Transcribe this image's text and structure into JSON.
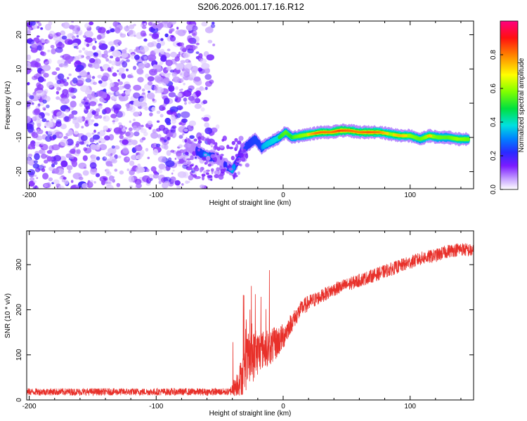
{
  "title": "S206.2026.001.17.16.R12",
  "chart_data": [
    {
      "type": "heatmap",
      "title": "S206.2026.001.17.16.R12",
      "xlabel": "Height of straight line (km)",
      "ylabel": "Frequency (Hz)",
      "xlim": [
        -202,
        150
      ],
      "ylim": [
        -25,
        24
      ],
      "x_ticks": [
        -200,
        -100,
        0,
        100
      ],
      "y_ticks": [
        -20,
        -10,
        0,
        10,
        20
      ],
      "colorbar": {
        "label": "Normalized spectral amplitude",
        "range": [
          0.0,
          1.0
        ],
        "ticks": [
          0.0,
          0.2,
          0.4,
          0.6,
          0.8
        ],
        "tick_labels": [
          "0.0",
          "0.2",
          "0.4",
          "0.6",
          "0.8"
        ]
      },
      "noise_region_x": [
        -202,
        -50
      ],
      "ridge": [
        {
          "x": -76,
          "f": -12,
          "a": 0.15
        },
        {
          "x": -68,
          "f": -14,
          "a": 0.2
        },
        {
          "x": -60,
          "f": -15.5,
          "a": 0.35
        },
        {
          "x": -52,
          "f": -16,
          "a": 0.15
        },
        {
          "x": -46,
          "f": -18,
          "a": 0.2
        },
        {
          "x": -40,
          "f": -19.5,
          "a": 0.35
        },
        {
          "x": -36,
          "f": -17,
          "a": 0.25
        },
        {
          "x": -33,
          "f": -14,
          "a": 0.3
        },
        {
          "x": -30,
          "f": -13,
          "a": 0.3
        },
        {
          "x": -27,
          "f": -12,
          "a": 0.25
        },
        {
          "x": -22,
          "f": -10.5,
          "a": 0.3
        },
        {
          "x": -17,
          "f": -13,
          "a": 0.3
        },
        {
          "x": -13,
          "f": -12,
          "a": 0.4
        },
        {
          "x": -8,
          "f": -11,
          "a": 0.45
        },
        {
          "x": -3,
          "f": -10,
          "a": 0.5
        },
        {
          "x": 2,
          "f": -8.5,
          "a": 0.55
        },
        {
          "x": 7,
          "f": -10,
          "a": 0.5
        },
        {
          "x": 14,
          "f": -9.5,
          "a": 0.65
        },
        {
          "x": 22,
          "f": -9,
          "a": 0.75
        },
        {
          "x": 30,
          "f": -8.5,
          "a": 0.85
        },
        {
          "x": 38,
          "f": -8.5,
          "a": 0.8
        },
        {
          "x": 45,
          "f": -8,
          "a": 0.95
        },
        {
          "x": 52,
          "f": -8,
          "a": 0.85
        },
        {
          "x": 60,
          "f": -8.5,
          "a": 0.8
        },
        {
          "x": 68,
          "f": -8.5,
          "a": 0.9
        },
        {
          "x": 76,
          "f": -8.5,
          "a": 0.8
        },
        {
          "x": 84,
          "f": -9,
          "a": 0.7
        },
        {
          "x": 92,
          "f": -9.5,
          "a": 0.75
        },
        {
          "x": 100,
          "f": -9.5,
          "a": 0.7
        },
        {
          "x": 108,
          "f": -10.5,
          "a": 0.55
        },
        {
          "x": 115,
          "f": -9.5,
          "a": 0.75
        },
        {
          "x": 122,
          "f": -10,
          "a": 0.6
        },
        {
          "x": 130,
          "f": -10,
          "a": 0.55
        },
        {
          "x": 138,
          "f": -10.5,
          "a": 0.7
        },
        {
          "x": 146,
          "f": -10.5,
          "a": 0.6
        }
      ]
    },
    {
      "type": "line",
      "xlabel": "Height of straight line (km)",
      "ylabel": "SNR (10 * v/v)",
      "xlim": [
        -202,
        150
      ],
      "ylim": [
        0,
        375
      ],
      "x_ticks": [
        -200,
        -100,
        0,
        100
      ],
      "y_ticks": [
        0,
        100,
        200,
        300
      ],
      "color": "#e8302a",
      "series": [
        {
          "name": "SNR",
          "x": [
            -202,
            -180,
            -150,
            -120,
            -100,
            -80,
            -60,
            -42,
            -38,
            -32,
            -28,
            -22,
            -18,
            -12,
            -8,
            -4,
            0,
            5,
            10,
            15,
            20,
            30,
            40,
            50,
            60,
            70,
            80,
            90,
            100,
            110,
            120,
            130,
            140,
            150
          ],
          "y": [
            18,
            18,
            18,
            18,
            18,
            18,
            18,
            18,
            30,
            55,
            85,
            100,
            110,
            115,
            120,
            130,
            140,
            165,
            185,
            205,
            215,
            230,
            245,
            255,
            265,
            275,
            285,
            295,
            305,
            315,
            320,
            330,
            335,
            330
          ],
          "noise": [
            8,
            8,
            8,
            8,
            8,
            8,
            8,
            8,
            22,
            45,
            60,
            55,
            45,
            40,
            40,
            35,
            30,
            22,
            20,
            18,
            18,
            15,
            15,
            15,
            15,
            15,
            15,
            15,
            15,
            15,
            15,
            15,
            15,
            15
          ]
        }
      ]
    }
  ]
}
